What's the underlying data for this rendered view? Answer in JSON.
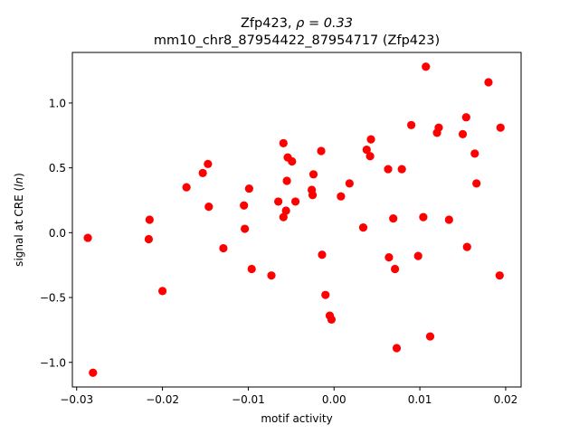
{
  "chart_data": {
    "type": "scatter",
    "title_line1_prefix": "Zfp423, ",
    "title_line1_rho": "ρ = 0.33",
    "title_line2": "mm10_chr8_87954422_87954717 (Zfp423)",
    "xlabel": "motif activity",
    "ylabel_prefix": "signal at CRE (",
    "ylabel_italic": "ln",
    "ylabel_suffix": ")",
    "xlim": [
      -0.0305,
      0.0218
    ],
    "ylim": [
      -1.19,
      1.39
    ],
    "xticks": [
      {
        "value": -0.03,
        "label": "−0.03"
      },
      {
        "value": -0.02,
        "label": "−0.02"
      },
      {
        "value": -0.01,
        "label": "−0.01"
      },
      {
        "value": 0.0,
        "label": "0.00"
      },
      {
        "value": 0.01,
        "label": "0.01"
      },
      {
        "value": 0.02,
        "label": "0.02"
      }
    ],
    "yticks": [
      {
        "value": -1.0,
        "label": "−1.0"
      },
      {
        "value": -0.5,
        "label": "−0.5"
      },
      {
        "value": 0.0,
        "label": "0.0"
      },
      {
        "value": 0.5,
        "label": "0.5"
      },
      {
        "value": 1.0,
        "label": "1.0"
      }
    ],
    "marker_color": "#ff0000",
    "grid": false,
    "points": [
      {
        "x": -0.0287,
        "y": -0.04
      },
      {
        "x": -0.0281,
        "y": -1.08
      },
      {
        "x": -0.0215,
        "y": 0.1
      },
      {
        "x": -0.0216,
        "y": -0.05
      },
      {
        "x": -0.02,
        "y": -0.45
      },
      {
        "x": -0.0172,
        "y": 0.35
      },
      {
        "x": -0.0153,
        "y": 0.46
      },
      {
        "x": -0.0147,
        "y": 0.53
      },
      {
        "x": -0.0146,
        "y": 0.2
      },
      {
        "x": -0.0129,
        "y": -0.12
      },
      {
        "x": -0.0105,
        "y": 0.21
      },
      {
        "x": -0.0104,
        "y": 0.03
      },
      {
        "x": -0.0099,
        "y": 0.34
      },
      {
        "x": -0.0096,
        "y": -0.28
      },
      {
        "x": -0.0073,
        "y": -0.33
      },
      {
        "x": -0.0065,
        "y": 0.24
      },
      {
        "x": -0.0059,
        "y": 0.69
      },
      {
        "x": -0.0059,
        "y": 0.12
      },
      {
        "x": -0.0056,
        "y": 0.17
      },
      {
        "x": -0.0055,
        "y": 0.4
      },
      {
        "x": -0.0054,
        "y": 0.58
      },
      {
        "x": -0.0049,
        "y": 0.55
      },
      {
        "x": -0.0045,
        "y": 0.24
      },
      {
        "x": -0.0026,
        "y": 0.33
      },
      {
        "x": -0.0025,
        "y": 0.29
      },
      {
        "x": -0.0024,
        "y": 0.45
      },
      {
        "x": -0.0015,
        "y": 0.63
      },
      {
        "x": -0.0014,
        "y": -0.17
      },
      {
        "x": -0.001,
        "y": -0.48
      },
      {
        "x": -0.0005,
        "y": -0.64
      },
      {
        "x": -0.0003,
        "y": -0.67
      },
      {
        "x": 0.0008,
        "y": 0.28
      },
      {
        "x": 0.0018,
        "y": 0.38
      },
      {
        "x": 0.0034,
        "y": 0.04
      },
      {
        "x": 0.0038,
        "y": 0.64
      },
      {
        "x": 0.0042,
        "y": 0.59
      },
      {
        "x": 0.0043,
        "y": 0.72
      },
      {
        "x": 0.0063,
        "y": 0.49
      },
      {
        "x": 0.0064,
        "y": -0.19
      },
      {
        "x": 0.0069,
        "y": 0.11
      },
      {
        "x": 0.0071,
        "y": -0.28
      },
      {
        "x": 0.0073,
        "y": -0.89
      },
      {
        "x": 0.0079,
        "y": 0.49
      },
      {
        "x": 0.009,
        "y": 0.83
      },
      {
        "x": 0.0098,
        "y": -0.18
      },
      {
        "x": 0.0104,
        "y": 0.12
      },
      {
        "x": 0.0107,
        "y": 1.28
      },
      {
        "x": 0.0112,
        "y": -0.8
      },
      {
        "x": 0.012,
        "y": 0.77
      },
      {
        "x": 0.0122,
        "y": 0.81
      },
      {
        "x": 0.0134,
        "y": 0.1
      },
      {
        "x": 0.015,
        "y": 0.76
      },
      {
        "x": 0.0154,
        "y": 0.89
      },
      {
        "x": 0.0155,
        "y": -0.11
      },
      {
        "x": 0.0164,
        "y": 0.61
      },
      {
        "x": 0.0166,
        "y": 0.38
      },
      {
        "x": 0.018,
        "y": 1.16
      },
      {
        "x": 0.0193,
        "y": -0.33
      },
      {
        "x": 0.0194,
        "y": 0.81
      }
    ]
  }
}
